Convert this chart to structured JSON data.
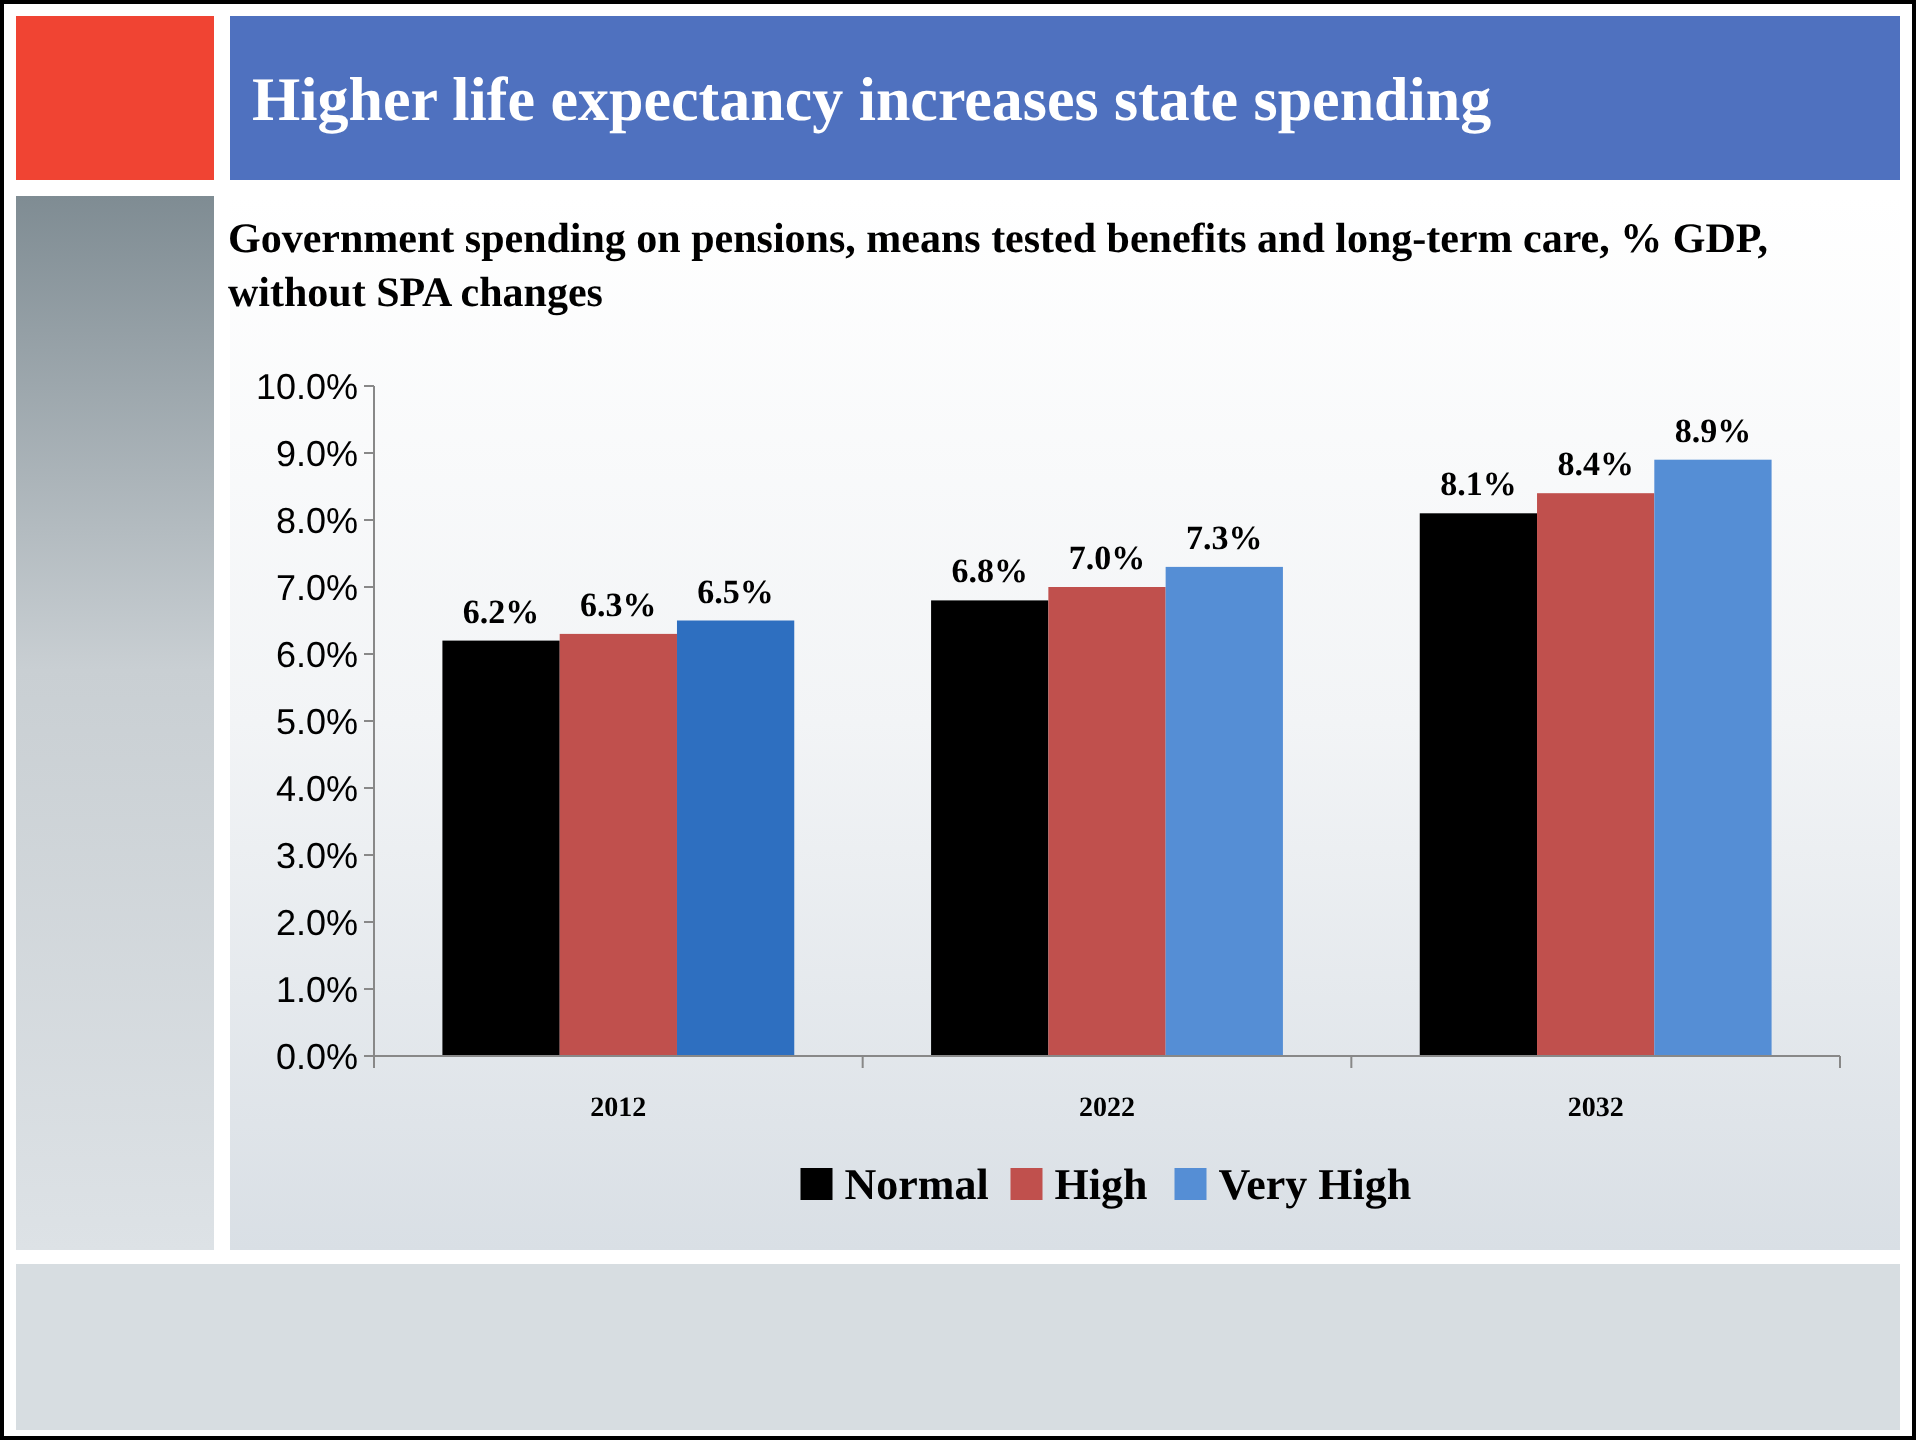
{
  "chart_data": {
    "type": "bar",
    "title": "Higher life expectancy increases state spending",
    "subtitle": "Government spending on pensions, means tested benefits and long-term care, % GDP, without SPA changes",
    "categories": [
      "2012",
      "2022",
      "2032"
    ],
    "series": [
      {
        "name": "Normal",
        "color": "#000000",
        "values": [
          6.2,
          6.8,
          8.1
        ],
        "value_labels": [
          "6.2%",
          "6.8%",
          "8.1%"
        ]
      },
      {
        "name": "High",
        "color": "#c0504d",
        "values": [
          6.3,
          7.0,
          8.4
        ],
        "value_labels": [
          "6.3%",
          "7.0%",
          "8.4%"
        ]
      },
      {
        "name": "Very High",
        "color": "#558ed5",
        "colors": [
          "#2e6fc0",
          "#558ed5",
          "#558ed5"
        ],
        "values": [
          6.5,
          7.3,
          8.9
        ],
        "value_labels": [
          "6.5%",
          "7.3%",
          "8.9%"
        ]
      }
    ],
    "ylim": [
      0,
      10
    ],
    "yticks": [
      {
        "value": 0,
        "label": "0.0%"
      },
      {
        "value": 1,
        "label": "1.0%"
      },
      {
        "value": 2,
        "label": "2.0%"
      },
      {
        "value": 3,
        "label": "3.0%"
      },
      {
        "value": 4,
        "label": "4.0%"
      },
      {
        "value": 5,
        "label": "5.0%"
      },
      {
        "value": 6,
        "label": "6.0%"
      },
      {
        "value": 7,
        "label": "7.0%"
      },
      {
        "value": 8,
        "label": "8.0%"
      },
      {
        "value": 9,
        "label": "9.0%"
      },
      {
        "value": 10,
        "label": "10.0%"
      }
    ],
    "grid": false,
    "legend": "bottom"
  }
}
